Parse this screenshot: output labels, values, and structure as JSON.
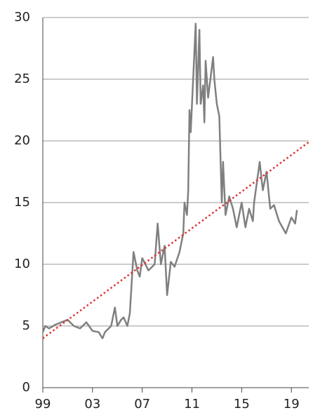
{
  "chart_data": {
    "type": "line",
    "xlim": [
      1999,
      2020.4
    ],
    "ylim": [
      0,
      30
    ],
    "yticks": [
      0,
      5,
      10,
      15,
      20,
      25,
      30
    ],
    "xticks": [
      {
        "value": 1999,
        "label": "99"
      },
      {
        "value": 2003,
        "label": "03"
      },
      {
        "value": 2007,
        "label": "07"
      },
      {
        "value": 2011,
        "label": "11"
      },
      {
        "value": 2015,
        "label": "15"
      },
      {
        "value": 2019,
        "label": "19"
      }
    ],
    "grid": true,
    "series": [
      {
        "color": "#808080",
        "dash": false,
        "x": [
          1999.0,
          1999.2,
          1999.5,
          2000.0,
          2000.5,
          2001.0,
          2001.5,
          2002.0,
          2002.5,
          2003.0,
          2003.5,
          2003.8,
          2004.0,
          2004.5,
          2004.8,
          2005.0,
          2005.3,
          2005.5,
          2005.8,
          2006.0,
          2006.3,
          2006.6,
          2006.8,
          2007.0,
          2007.5,
          2008.0,
          2008.24,
          2008.5,
          2008.8,
          2009.0,
          2009.3,
          2009.6,
          2010.0,
          2010.3,
          2010.4,
          2010.6,
          2010.7,
          2010.8,
          2010.9,
          2011.3,
          2011.4,
          2011.6,
          2011.7,
          2011.9,
          2012.0,
          2012.1,
          2012.3,
          2012.7,
          2012.8,
          2013.0,
          2013.2,
          2013.4,
          2013.5,
          2013.7,
          2014.0,
          2014.3,
          2014.6,
          2015.0,
          2015.3,
          2015.6,
          2015.9,
          2016.0,
          2016.45,
          2016.7,
          2017.0,
          2017.3,
          2017.6,
          2018.0,
          2018.55,
          2019.0,
          2019.3,
          2019.45
        ],
        "values": [
          4.5,
          5.0,
          4.8,
          5.1,
          5.3,
          5.5,
          5.0,
          4.8,
          5.3,
          4.6,
          4.5,
          4.0,
          4.5,
          5.0,
          6.5,
          5.0,
          5.5,
          5.7,
          5.0,
          6.0,
          11.0,
          9.5,
          9.0,
          10.5,
          9.5,
          10.0,
          13.3,
          10.0,
          11.5,
          7.5,
          10.2,
          9.8,
          11.0,
          12.5,
          15.0,
          14.0,
          16.0,
          22.5,
          20.7,
          29.5,
          23.0,
          29.0,
          23.0,
          24.5,
          21.5,
          26.5,
          23.5,
          26.8,
          25.0,
          23.0,
          22.0,
          15.0,
          18.3,
          14.0,
          15.5,
          14.5,
          13.0,
          15.0,
          13.0,
          14.5,
          13.5,
          15.0,
          18.3,
          16.0,
          17.5,
          14.5,
          14.8,
          13.5,
          12.5,
          13.8,
          13.3,
          14.4
        ]
      },
      {
        "color": "#e03030",
        "dash": true,
        "x": [
          1999,
          2020.4
        ],
        "values": [
          4.0,
          19.9
        ]
      }
    ]
  }
}
